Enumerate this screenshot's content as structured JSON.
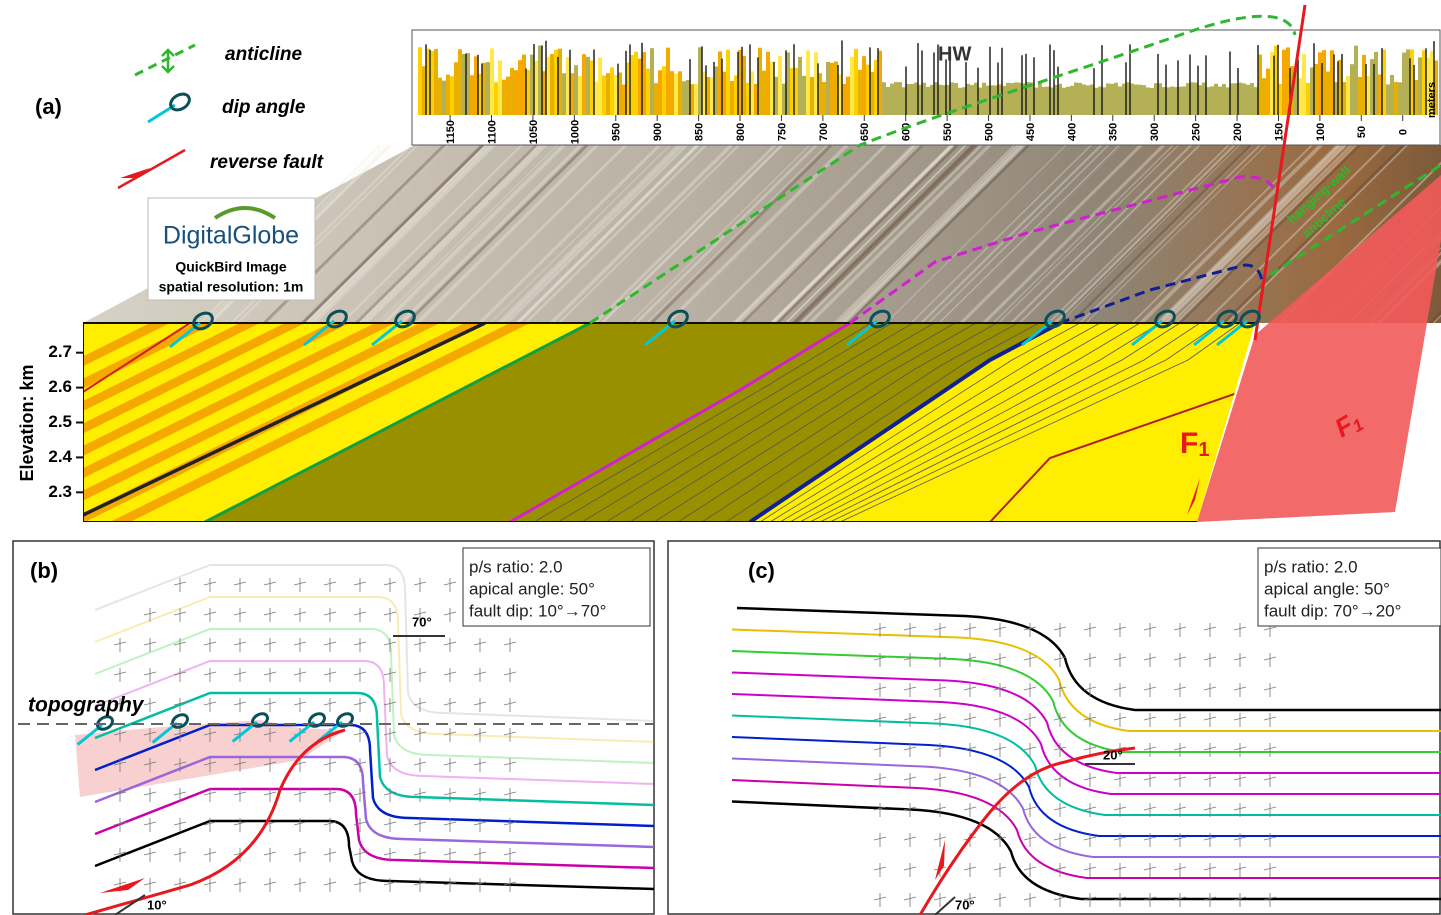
{
  "legend": {
    "anticline": "anticline",
    "dip_angle": "dip angle",
    "reverse_fault": "reverse fault"
  },
  "panel_a": {
    "label": "(a)",
    "y_axis_label": "Elevation: km",
    "ylim": [
      2.215,
      2.785
    ],
    "yticks": [
      2.3,
      2.4,
      2.5,
      2.6,
      2.7
    ],
    "strip": {
      "title": "HW",
      "unit_label": "meters",
      "xlim": [
        1196,
        -45
      ],
      "xticks": [
        1150,
        1100,
        1050,
        1000,
        950,
        900,
        850,
        800,
        750,
        700,
        650,
        600,
        550,
        500,
        450,
        400,
        350,
        300,
        250,
        200,
        150,
        100,
        50,
        0
      ]
    },
    "logo": {
      "brand": "DigitalGlobe",
      "line1": "QuickBird Image",
      "line2": "spatial resolution: 1m"
    },
    "fault_label": "F",
    "fault_subscript": "1",
    "fault_plane_label": "F",
    "fault_plane_subscript": "1",
    "fold_label_line1": "hanging-wall",
    "fold_label_line2": "anticline"
  },
  "panel_b": {
    "label": "(b)",
    "info": [
      "p/s ratio: 2.0",
      "apical angle: 50°",
      "fault dip: 10°→70°"
    ],
    "topography": "topography",
    "upper_angle": "70°",
    "lower_angle": "10°"
  },
  "panel_c": {
    "label": "(c)",
    "info": [
      "p/s ratio: 2.0",
      "apical angle: 50°",
      "fault dip: 70°→20°"
    ],
    "upper_angle": "20°",
    "lower_angle": "70°"
  }
}
